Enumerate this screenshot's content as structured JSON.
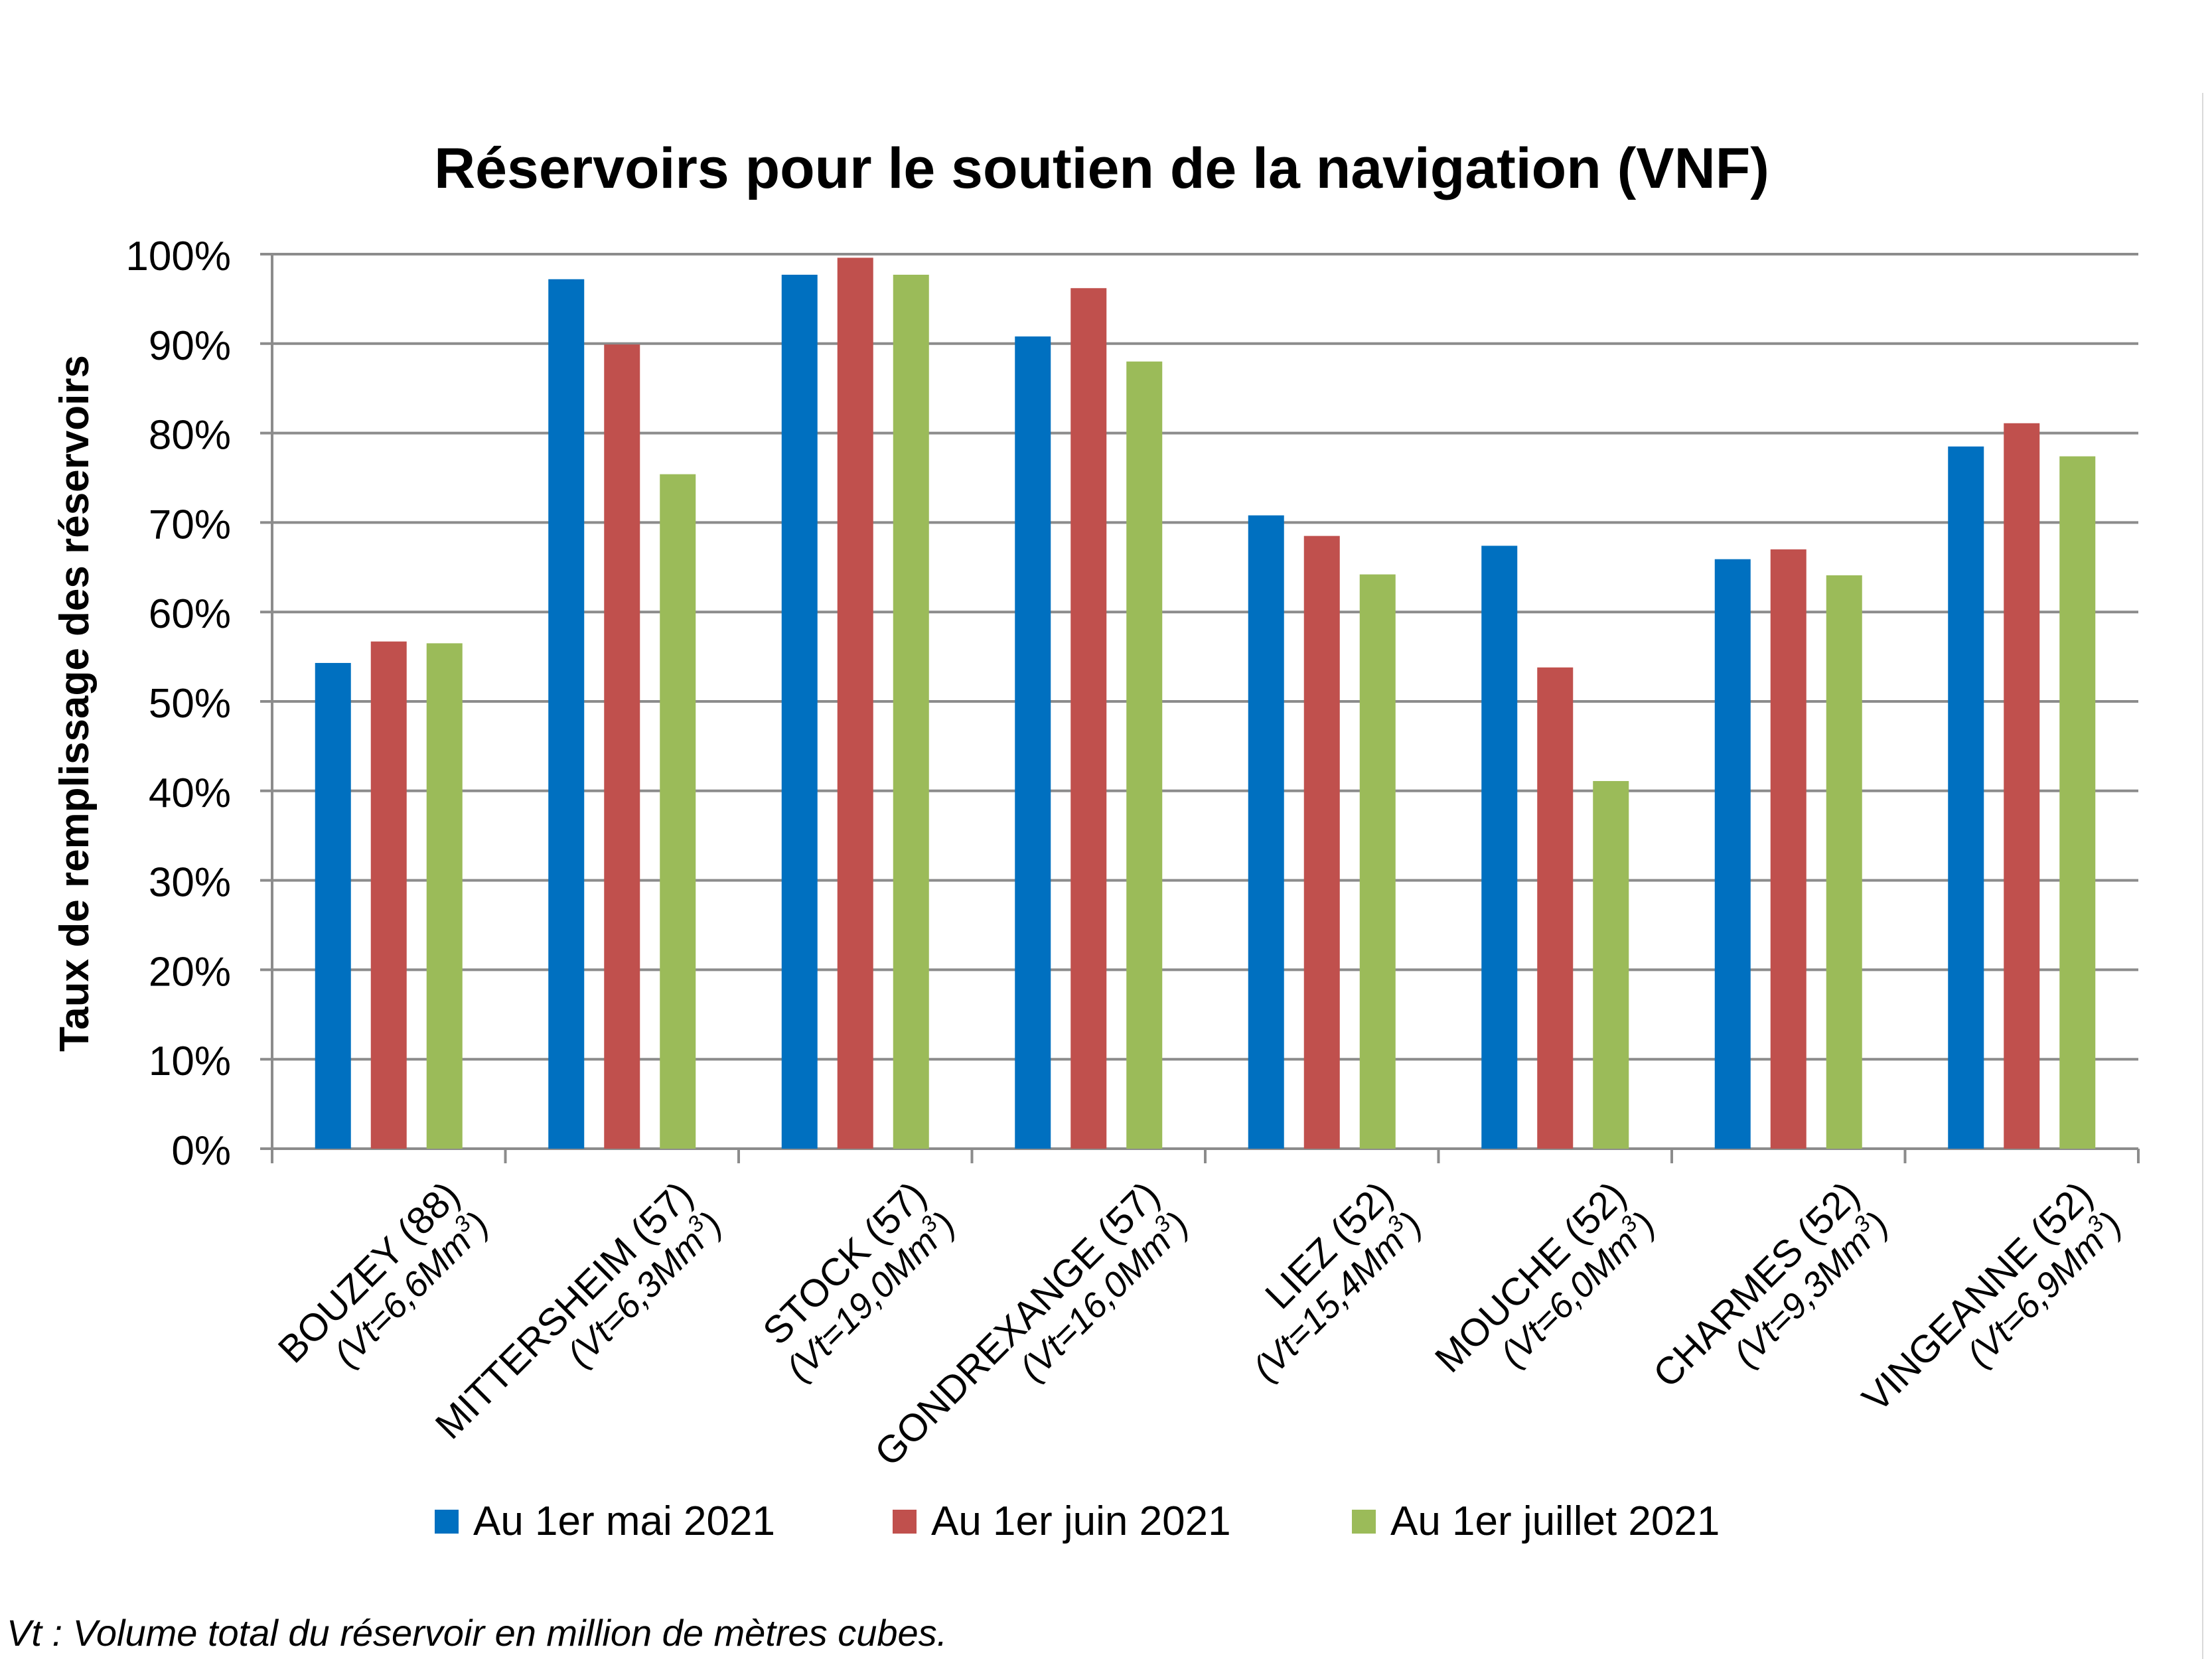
{
  "chart_data": {
    "type": "bar",
    "title": "Réservoirs pour le soutien de la navigation (VNF)",
    "ylabel": "Taux de remplissage des réservoirs",
    "xlabel": "",
    "ylim": [
      0,
      1
    ],
    "yticks": [
      "0%",
      "10%",
      "20%",
      "30%",
      "40%",
      "50%",
      "60%",
      "70%",
      "80%",
      "90%",
      "100%"
    ],
    "grid": true,
    "legend_position": "bottom",
    "categories": [
      {
        "name": "BOUZEY (88)",
        "volume": "(Vt=6,6Mm",
        "sup": "3",
        "close": ")"
      },
      {
        "name": "MITTERSHEIM (57)",
        "volume": "(Vt=6,3Mm",
        "sup": "3",
        "close": ")"
      },
      {
        "name": "STOCK (57)",
        "volume": "(Vt=19,0Mm",
        "sup": "3",
        "close": ")"
      },
      {
        "name": "GONDREXANGE (57)",
        "volume": "(Vt=16,0Mm",
        "sup": "3",
        "close": ")"
      },
      {
        "name": "LIEZ (52)",
        "volume": "(Vt=15,4Mm",
        "sup": "3",
        "close": ")"
      },
      {
        "name": "MOUCHE (52)",
        "volume": "(Vt=6,0Mm",
        "sup": "3",
        "close": ")"
      },
      {
        "name": "CHARMES (52)",
        "volume": "(Vt=9,3Mm",
        "sup": "3",
        "close": ")"
      },
      {
        "name": "VINGEANNE (52)",
        "volume": "(Vt=6,9Mm",
        "sup": "3",
        "close": ")"
      }
    ],
    "series": [
      {
        "name": "Au 1er mai 2021",
        "color": "#0070C0",
        "values": [
          0.543,
          0.972,
          0.977,
          0.908,
          0.708,
          0.674,
          0.659,
          0.785
        ]
      },
      {
        "name": "Au 1er juin 2021",
        "color": "#C0504D",
        "values": [
          0.567,
          0.899,
          0.996,
          0.962,
          0.685,
          0.538,
          0.67,
          0.811
        ]
      },
      {
        "name": "Au 1er juillet 2021",
        "color": "#9BBB59",
        "values": [
          0.565,
          0.754,
          0.977,
          0.88,
          0.642,
          0.411,
          0.641,
          0.774
        ]
      }
    ]
  },
  "footnote": "Vt : Volume total du réservoir en million de mètres cubes."
}
